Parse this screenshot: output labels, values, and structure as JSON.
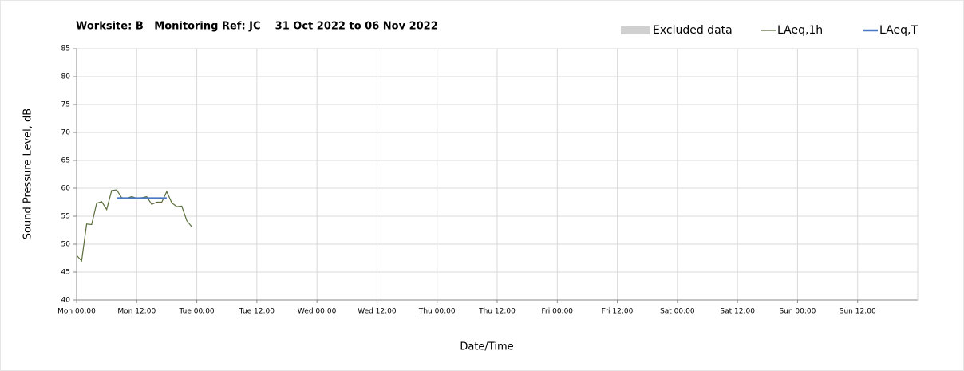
{
  "chart_data": {
    "type": "line",
    "title": "Worksite: B   Monitoring Ref: JC    31 Oct 2022 to 06 Nov 2022",
    "xlabel": "Date/Time",
    "ylabel": "Sound Pressure Level, dB",
    "xlim": [
      0,
      168
    ],
    "xticks": [
      {
        "value": 0,
        "label": "Mon 00:00"
      },
      {
        "value": 12,
        "label": "Mon 12:00"
      },
      {
        "value": 24,
        "label": "Tue 00:00"
      },
      {
        "value": 36,
        "label": "Tue 12:00"
      },
      {
        "value": 48,
        "label": "Wed 00:00"
      },
      {
        "value": 60,
        "label": "Wed 12:00"
      },
      {
        "value": 72,
        "label": "Thu 00:00"
      },
      {
        "value": 84,
        "label": "Thu 12:00"
      },
      {
        "value": 96,
        "label": "Fri 00:00"
      },
      {
        "value": 108,
        "label": "Fri 12:00"
      },
      {
        "value": 120,
        "label": "Sat 00:00"
      },
      {
        "value": 132,
        "label": "Sat 12:00"
      },
      {
        "value": 144,
        "label": "Sun 00:00"
      },
      {
        "value": 156,
        "label": "Sun 12:00"
      }
    ],
    "ylim": [
      40,
      85
    ],
    "yticks": [
      40,
      45,
      50,
      55,
      60,
      65,
      70,
      75,
      80,
      85
    ],
    "grid": true,
    "legend": "top-right",
    "series": [
      {
        "name": "Excluded data",
        "color": "#d0d0d0",
        "x": [],
        "values": []
      },
      {
        "name": "LAeq,1h",
        "color": "#5a6e3c",
        "x": [
          0,
          1,
          2,
          3,
          4,
          5,
          6,
          7,
          8,
          9,
          10,
          11,
          12,
          13,
          14,
          15,
          16,
          17,
          18,
          19,
          20,
          21,
          22,
          23
        ],
        "values": [
          48,
          47,
          53.6,
          53.5,
          57.3,
          57.6,
          56.2,
          59.6,
          59.7,
          58.3,
          58.2,
          58.5,
          58.2,
          58.3,
          58.5,
          57.1,
          57.5,
          57.5,
          59.4,
          57.4,
          56.7,
          56.8,
          54.2,
          53.1
        ]
      },
      {
        "name": "LAeq,T",
        "color": "#4a78c4",
        "x": [
          8,
          18
        ],
        "values": [
          58.2,
          58.2
        ]
      }
    ]
  }
}
